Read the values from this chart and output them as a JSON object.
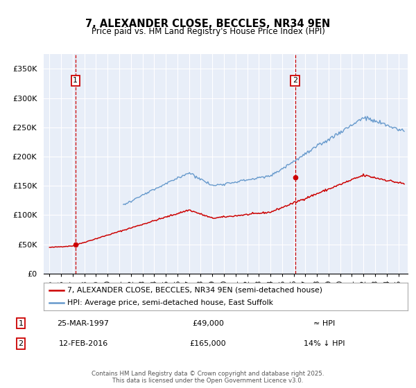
{
  "title": "7, ALEXANDER CLOSE, BECCLES, NR34 9EN",
  "subtitle": "Price paid vs. HM Land Registry's House Price Index (HPI)",
  "legend_line1": "7, ALEXANDER CLOSE, BECCLES, NR34 9EN (semi-detached house)",
  "legend_line2": "HPI: Average price, semi-detached house, East Suffolk",
  "annotation1_label": "1",
  "annotation1_date": "25-MAR-1997",
  "annotation1_price": "£49,000",
  "annotation1_hpi": "≈ HPI",
  "annotation2_label": "2",
  "annotation2_date": "12-FEB-2016",
  "annotation2_price": "£165,000",
  "annotation2_hpi": "14% ↓ HPI",
  "vline1_x": 1997.23,
  "vline2_x": 2016.12,
  "point1_x": 1997.23,
  "point1_y": 49000,
  "point2_x": 2016.12,
  "point2_y": 165000,
  "house_color": "#cc0000",
  "hpi_color": "#6699cc",
  "vline_color": "#cc0000",
  "background_color": "#e8eef8",
  "grid_color": "#ffffff",
  "ylim": [
    0,
    375000
  ],
  "xlim_left": 1994.5,
  "xlim_right": 2025.8,
  "footer": "Contains HM Land Registry data © Crown copyright and database right 2025.\nThis data is licensed under the Open Government Licence v3.0.",
  "yticks": [
    0,
    50000,
    100000,
    150000,
    200000,
    250000,
    300000,
    350000
  ],
  "ytick_labels": [
    "£0",
    "£50K",
    "£100K",
    "£150K",
    "£200K",
    "£250K",
    "£300K",
    "£350K"
  ]
}
